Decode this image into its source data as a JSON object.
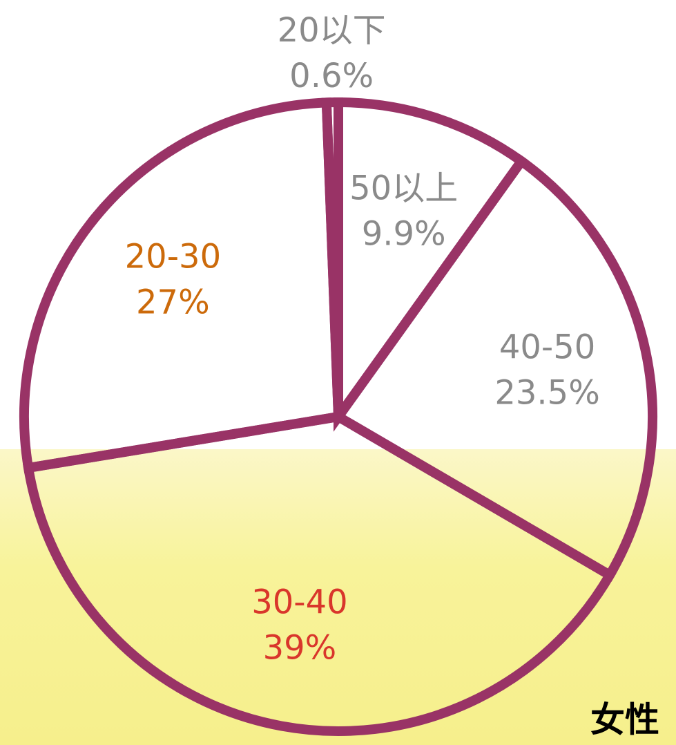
{
  "chart_data": {
    "type": "pie",
    "title": "女性",
    "categories": [
      "50以上",
      "40-50",
      "30-40",
      "20-30",
      "20以下"
    ],
    "values": [
      9.9,
      23.5,
      39,
      27,
      0.6
    ],
    "value_labels": [
      "9.9%",
      "23.5%",
      "39%",
      "27%",
      "0.6%"
    ],
    "label_colors": [
      "#8a8a8a",
      "#8a8a8a",
      "#d9362b",
      "#cc6a0a",
      "#8a8a8a"
    ],
    "color": "#993366"
  }
}
